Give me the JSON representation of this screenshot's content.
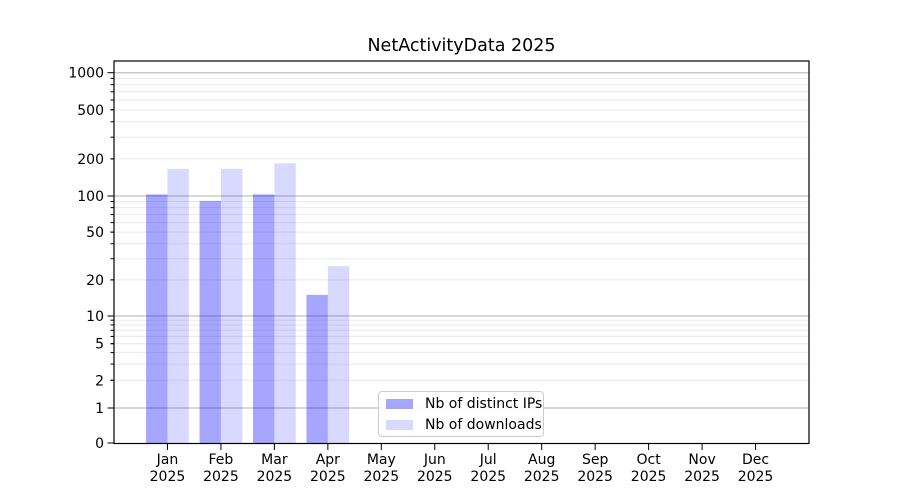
{
  "chart_data": {
    "type": "bar",
    "title": "NetActivityData 2025",
    "x_categories": [
      "Jan",
      "Feb",
      "Mar",
      "Apr",
      "May",
      "Jun",
      "Jul",
      "Aug",
      "Sep",
      "Oct",
      "Nov",
      "Dec"
    ],
    "x_year": "2025",
    "series": [
      {
        "name": "Nb of distinct IPs",
        "color_hex": "#a6a6ff",
        "fill": "rgba(0,0,255,0.35)",
        "values": [
          103,
          91,
          103,
          15,
          0,
          0,
          0,
          0,
          0,
          0,
          0,
          0
        ]
      },
      {
        "name": "Nb of downloads",
        "color_hex": "#d9d9ff",
        "fill": "rgba(0,0,255,0.15)",
        "values": [
          166,
          166,
          184,
          26,
          0,
          0,
          0,
          0,
          0,
          0,
          0,
          0
        ]
      }
    ],
    "yscale": "symlog",
    "ylim": [
      0,
      1250
    ],
    "y_tick_labels": [
      0,
      1,
      2,
      5,
      10,
      20,
      50,
      100,
      200,
      500,
      1000
    ],
    "y_major_ticks": [
      0,
      1,
      10,
      100,
      1000
    ],
    "grid": true,
    "legend_position": "lower-center",
    "colors": {
      "axis": "#000000",
      "grid_major": "#b2b2b2",
      "grid_minor": "#eaeaea",
      "tick_text": "#000000",
      "legend_border": "#cccccc"
    }
  }
}
